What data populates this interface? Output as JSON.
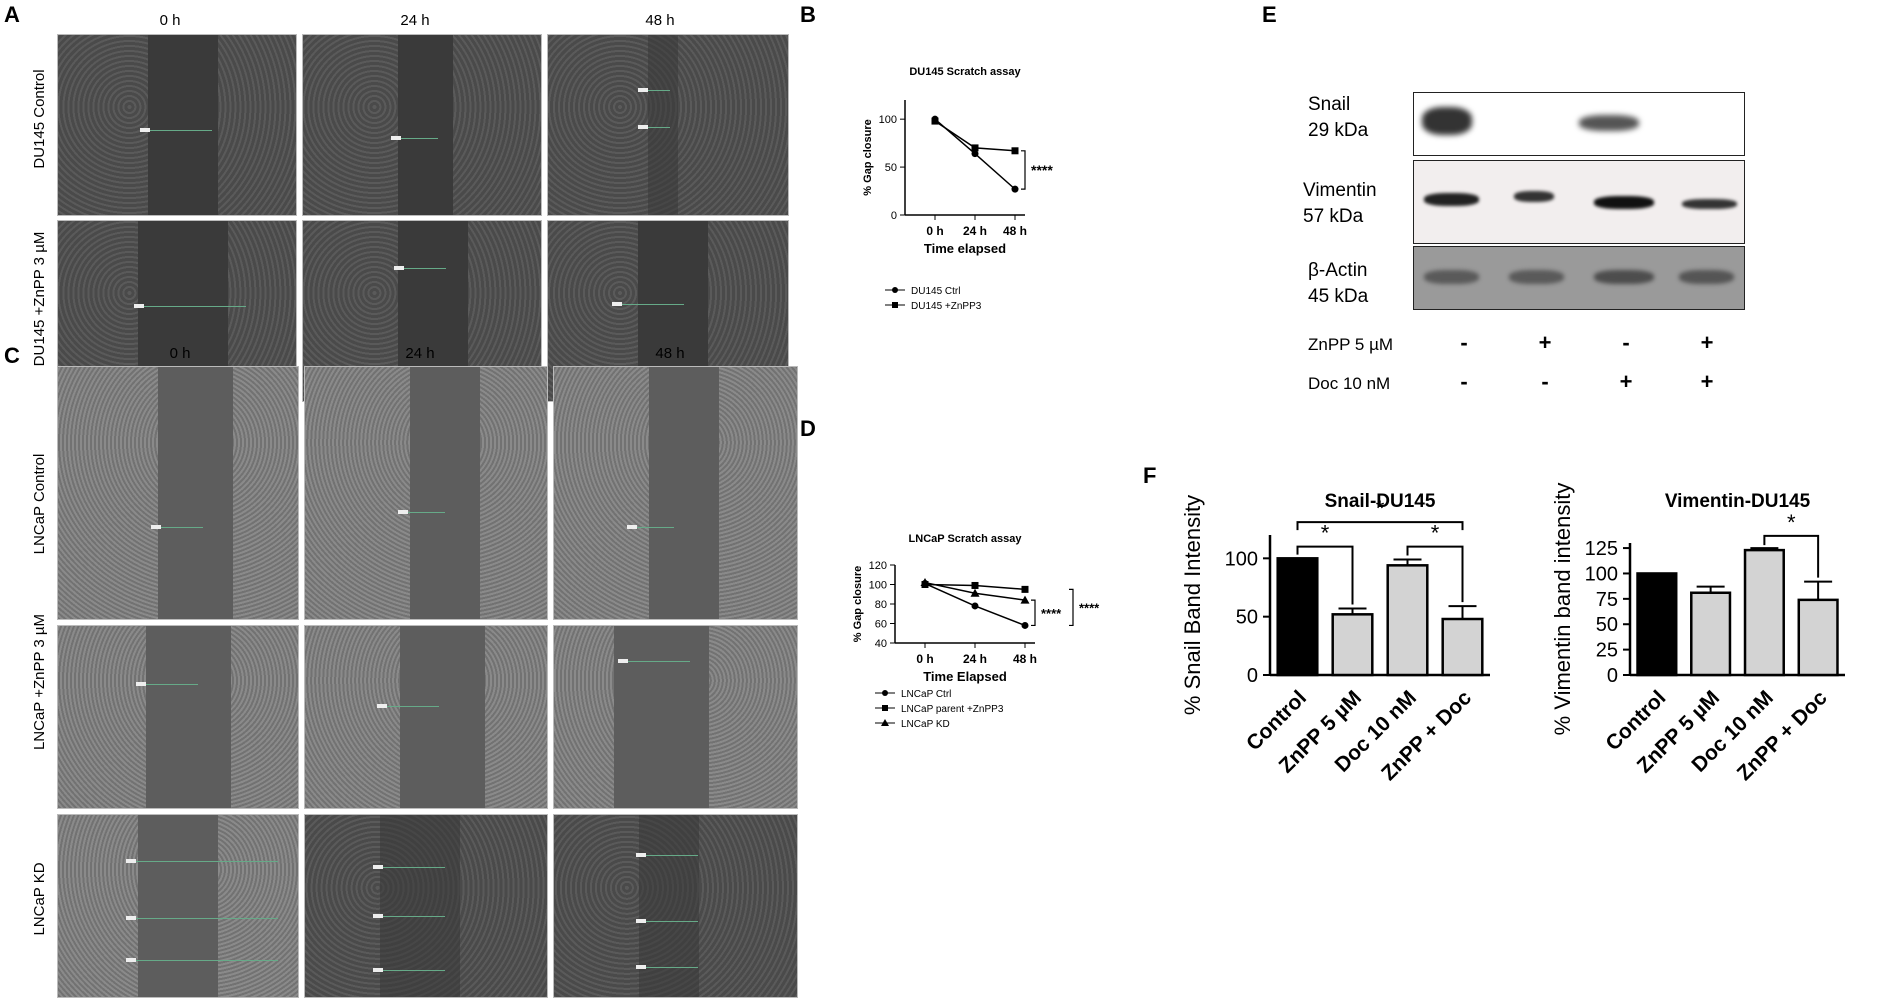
{
  "panels": {
    "A": "A",
    "B": "B",
    "C": "C",
    "D": "D",
    "E": "E",
    "F": "F"
  },
  "panelA": {
    "timepoints": [
      "0 h",
      "24 h",
      "48 h"
    ],
    "rows": [
      "DU145 Control",
      "DU145 +ZnPP 3 µM"
    ]
  },
  "panelC": {
    "timepoints": [
      "0 h",
      "24 h",
      "48 h"
    ],
    "rows": [
      "LNCaP Control",
      "LNCaP +ZnPP 3 µM",
      "LNCaP KD"
    ]
  },
  "panelE": {
    "proteins": [
      {
        "name": "Snail",
        "size": "29 kDa"
      },
      {
        "name": "Vimentin",
        "size": "57 kDa"
      },
      {
        "name": "β-Actin",
        "size": "45 kDa"
      }
    ],
    "treatments": [
      {
        "label": "ZnPP 5 µM",
        "signs": [
          "-",
          "+",
          "-",
          "+"
        ]
      },
      {
        "label": "Doc 10 nM",
        "signs": [
          "-",
          "-",
          "+",
          "+"
        ]
      }
    ]
  },
  "chart_data": [
    {
      "id": "B",
      "type": "line",
      "title": "DU145 Scratch assay",
      "xlabel": "Time elapsed",
      "ylabel": "% Gap closure",
      "categories": [
        "0 h",
        "24 h",
        "48 h"
      ],
      "ylim": [
        0,
        120
      ],
      "yticks": [
        0,
        50,
        100
      ],
      "series": [
        {
          "name": "DU145 Ctrl",
          "marker": "circle",
          "values": [
            100,
            64,
            27
          ]
        },
        {
          "name": "DU145 +ZnPP3",
          "marker": "square",
          "values": [
            98,
            70,
            67
          ]
        }
      ],
      "annotations": [
        "****"
      ],
      "legend_position": "bottom"
    },
    {
      "id": "D",
      "type": "line",
      "title": "LNCaP Scratch assay",
      "xlabel": "Time Elapsed",
      "ylabel": "% Gap closure",
      "categories": [
        "0 h",
        "24 h",
        "48 h"
      ],
      "ylim": [
        40,
        120
      ],
      "yticks": [
        40,
        60,
        80,
        100,
        120
      ],
      "series": [
        {
          "name": "LNCaP Ctrl",
          "marker": "circle",
          "values": [
            101,
            78,
            58
          ]
        },
        {
          "name": "LNCaP parent +ZnPP3",
          "marker": "square",
          "values": [
            100,
            99,
            95
          ]
        },
        {
          "name": "LNCaP KD",
          "marker": "triangle",
          "values": [
            102,
            91,
            84
          ]
        }
      ],
      "annotations": [
        "****",
        "****"
      ],
      "legend_position": "bottom"
    },
    {
      "id": "F-snail",
      "type": "bar",
      "title": "Snail-DU145",
      "xlabel": "",
      "ylabel": "% Snail Band Intensity",
      "categories": [
        "Control",
        "ZnPP 5 µM",
        "Doc 10 nM",
        "ZnPP + Doc"
      ],
      "values": [
        100,
        52,
        94,
        48
      ],
      "errors": [
        0,
        5,
        5,
        11
      ],
      "colors": [
        "#000000",
        "#d3d3d3",
        "#d3d3d3",
        "#d3d3d3"
      ],
      "ylim": [
        0,
        120
      ],
      "yticks": [
        0,
        50,
        100
      ],
      "significance": [
        {
          "from": 0,
          "to": 1,
          "label": "*"
        },
        {
          "from": 2,
          "to": 3,
          "label": "*"
        },
        {
          "from": 0,
          "to": 3,
          "label": "*"
        }
      ]
    },
    {
      "id": "F-vimentin",
      "type": "bar",
      "title": "Vimentin-DU145",
      "xlabel": "",
      "ylabel": "% Vimentin band intensity",
      "categories": [
        "Control",
        "ZnPP 5 µM",
        "Doc 10 nM",
        "ZnPP + Doc"
      ],
      "values": [
        100,
        81,
        123,
        74
      ],
      "errors": [
        0,
        6,
        2,
        18
      ],
      "colors": [
        "#000000",
        "#d3d3d3",
        "#d3d3d3",
        "#d3d3d3"
      ],
      "ylim": [
        0,
        130
      ],
      "yticks": [
        0,
        25,
        50,
        75,
        100,
        125
      ],
      "significance": [
        {
          "from": 2,
          "to": 3,
          "label": "*"
        }
      ]
    }
  ]
}
